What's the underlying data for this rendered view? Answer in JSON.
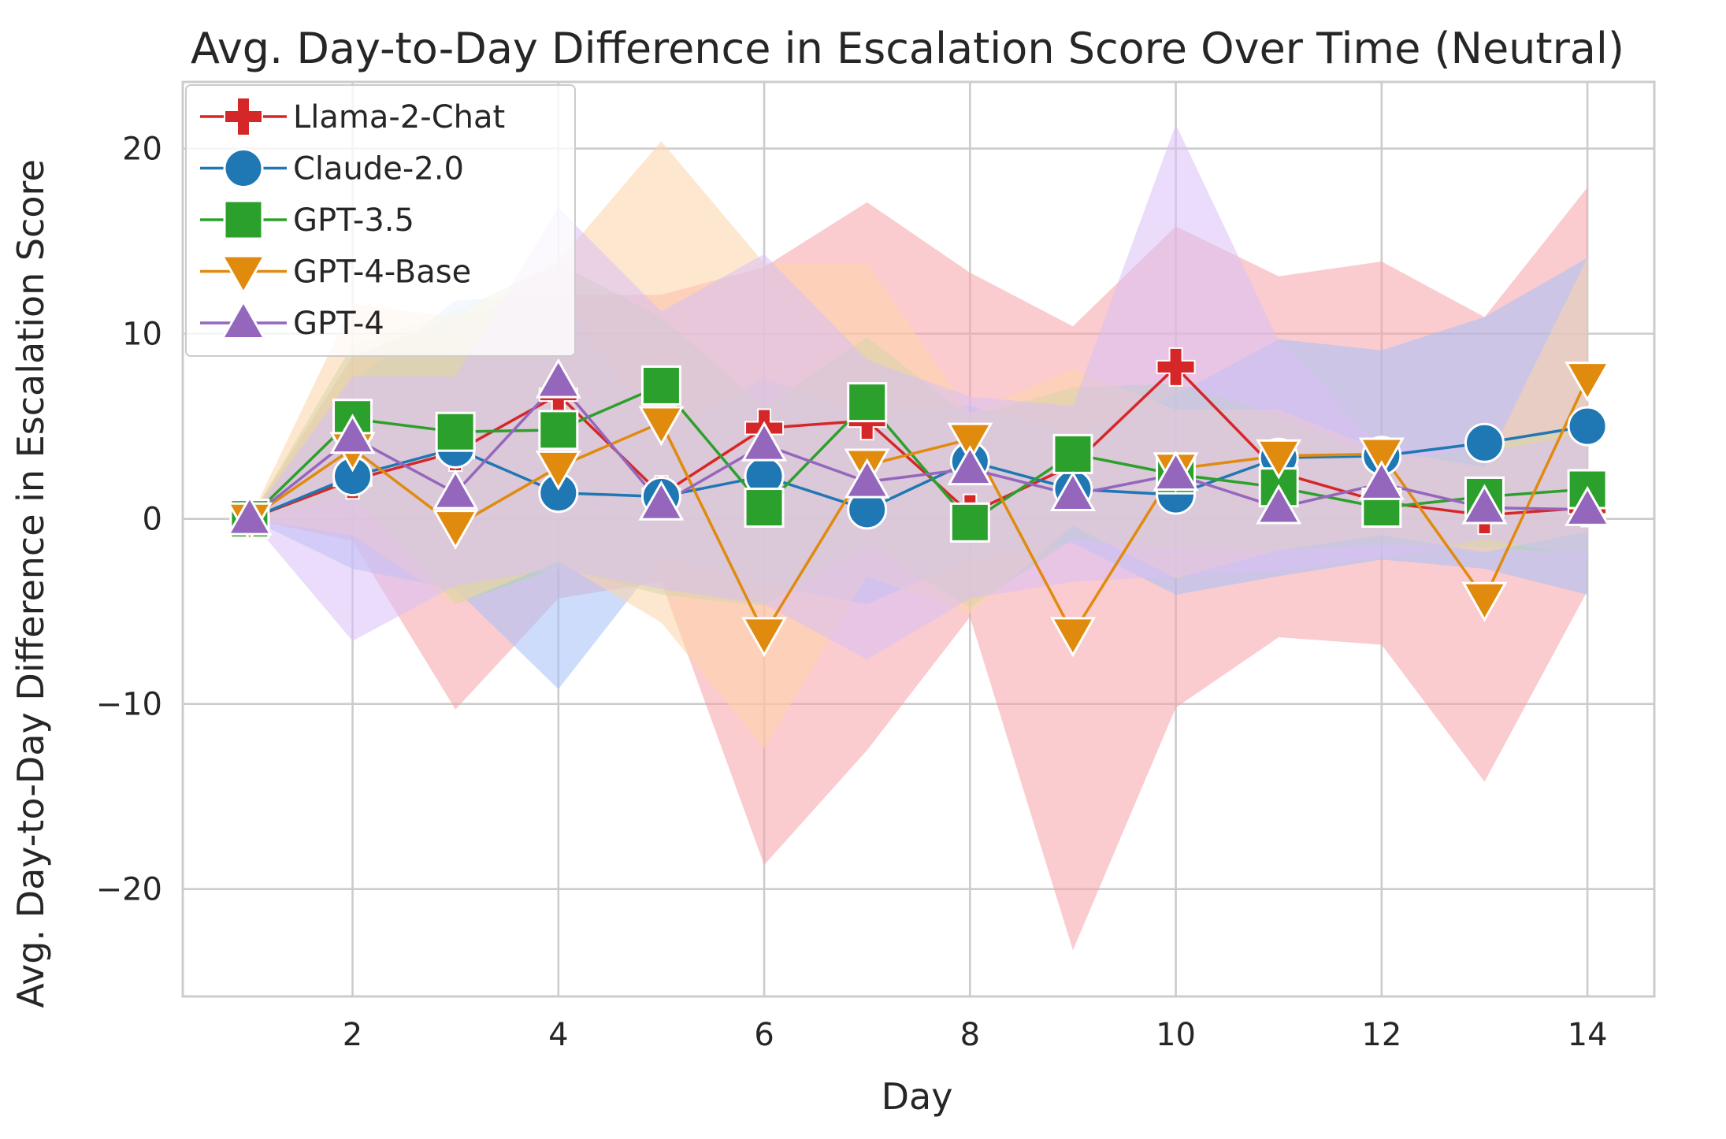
{
  "chart_data": {
    "type": "line",
    "title": "Avg. Day-to-Day Difference in Escalation Score Over Time (Neutral)",
    "xlabel": "Day",
    "ylabel": "Avg. Day-to-Day Difference in Escalation Score",
    "xlim": [
      0.35,
      14.65
    ],
    "ylim": [
      -25.8,
      23.6
    ],
    "xticks": [
      2,
      4,
      6,
      8,
      10,
      12,
      14
    ],
    "yticks": [
      -20,
      -10,
      0,
      10,
      20
    ],
    "ytick_labels": [
      "−20",
      "−10",
      "0",
      "10",
      "20"
    ],
    "grid": true,
    "legend_position": "top-left",
    "x": [
      1,
      2,
      3,
      4,
      5,
      6,
      7,
      8,
      9,
      10,
      11,
      12,
      13,
      14
    ],
    "series": [
      {
        "name": "Llama-2-Chat",
        "color": "#d62728",
        "band_color": "#f5a3a7",
        "marker": "plus",
        "values": [
          0,
          2.1,
          3.6,
          6.7,
          1.3,
          4.9,
          5.3,
          0.3,
          2.9,
          8.2,
          2.5,
          0.9,
          0.2,
          0.6
        ],
        "lower": [
          0,
          -1.2,
          -10.3,
          -4.3,
          -3.4,
          -18.7,
          -12.5,
          -5.3,
          -23.3,
          -10.2,
          -6.4,
          -6.8,
          -14.2,
          -3.9
        ],
        "upper": [
          0,
          8.8,
          10.9,
          12.1,
          12.1,
          13.6,
          17.1,
          13.3,
          10.4,
          15.8,
          13.1,
          13.9,
          10.9,
          17.9
        ]
      },
      {
        "name": "Claude-2.0",
        "color": "#1f77b4",
        "band_color": "#a6bff7",
        "marker": "circle",
        "values": [
          0,
          2.3,
          3.8,
          1.4,
          1.2,
          2.3,
          0.5,
          3.1,
          1.6,
          1.3,
          3.3,
          3.4,
          4.1,
          5.0
        ],
        "lower": [
          0,
          -2.7,
          -3.8,
          -9.2,
          -2.1,
          -3.6,
          -4.6,
          -2.2,
          -1.3,
          -4.1,
          -3.1,
          -2.2,
          -2.7,
          -4.1
        ],
        "upper": [
          0,
          7.4,
          11.8,
          12.1,
          4.6,
          7.6,
          5.6,
          6.1,
          4.6,
          6.7,
          9.7,
          9.1,
          10.9,
          14.1
        ]
      },
      {
        "name": "GPT-3.5",
        "color": "#2ca02c",
        "band_color": "#a8d8a8",
        "marker": "square",
        "values": [
          0,
          5.4,
          4.7,
          4.8,
          7.2,
          0.6,
          6.3,
          -0.2,
          3.5,
          2.4,
          1.7,
          0.6,
          1.2,
          1.6
        ],
        "lower": [
          0,
          1.3,
          -4.6,
          -2.6,
          -4.1,
          -4.7,
          -1.4,
          -4.8,
          -1.1,
          -1.6,
          -1.7,
          -1.4,
          -1.5,
          -1.9
        ],
        "upper": [
          0,
          9.4,
          11.2,
          13.8,
          10.9,
          6.1,
          9.8,
          5.5,
          7.1,
          7.3,
          5.6,
          3.1,
          3.8,
          5.3
        ]
      },
      {
        "name": "GPT-4-Base",
        "color": "#e08a0e",
        "band_color": "#fdd3a8",
        "marker": "triangle-down",
        "values": [
          0,
          3.8,
          -0.4,
          2.8,
          5.2,
          -6.2,
          2.9,
          4.3,
          -6.2,
          2.7,
          3.4,
          3.5,
          -4.3,
          7.6
        ],
        "lower": [
          0,
          -0.9,
          -4.6,
          -2.3,
          -5.6,
          -12.4,
          -3.1,
          -5.1,
          -0.4,
          -3.2,
          -1.7,
          -0.9,
          -1.8,
          -0.7
        ],
        "upper": [
          0,
          11.6,
          10.9,
          13.9,
          20.4,
          13.8,
          13.8,
          5.7,
          8.1,
          5.9,
          5.9,
          3.7,
          2.8,
          14.1
        ]
      },
      {
        "name": "GPT-4",
        "color": "#9467bd",
        "band_color": "#d9c0f5",
        "marker": "triangle-up",
        "values": [
          0,
          4.4,
          1.4,
          7.4,
          0.8,
          4.0,
          2.0,
          2.7,
          1.3,
          2.4,
          0.6,
          1.9,
          0.6,
          0.5
        ],
        "lower": [
          0,
          -6.6,
          -3.6,
          -2.7,
          -3.8,
          -4.6,
          -7.6,
          -4.3,
          -3.4,
          -3.1,
          -2.8,
          -2.1,
          -1.1,
          -2.1
        ],
        "upper": [
          0,
          7.7,
          7.7,
          16.8,
          11.2,
          14.3,
          8.6,
          6.6,
          6.1,
          21.3,
          9.6,
          3.9,
          3.6,
          4.6
        ]
      }
    ]
  }
}
